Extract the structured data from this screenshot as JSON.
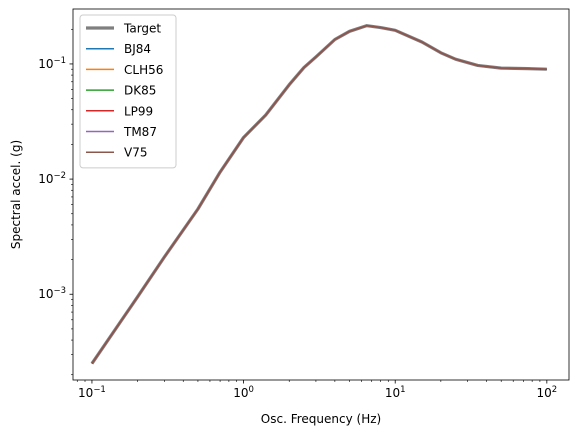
{
  "chart_data": {
    "type": "line",
    "title": "",
    "xlabel": "Osc. Frequency (Hz)",
    "ylabel": "Spectral accel. (g)",
    "xscale": "log",
    "yscale": "log",
    "xlim": [
      0.075,
      140
    ],
    "ylim": [
      0.00018,
      0.3
    ],
    "grid": false,
    "legend_position": "top-left",
    "x_ticks": [
      {
        "value": 0.1,
        "base": "10",
        "exp": "−1"
      },
      {
        "value": 1,
        "base": "10",
        "exp": "0"
      },
      {
        "value": 10,
        "base": "10",
        "exp": "1"
      },
      {
        "value": 100,
        "base": "10",
        "exp": "2"
      }
    ],
    "y_ticks": [
      {
        "value": 0.001,
        "base": "10",
        "exp": "−3"
      },
      {
        "value": 0.01,
        "base": "10",
        "exp": "−2"
      },
      {
        "value": 0.1,
        "base": "10",
        "exp": "−1"
      }
    ],
    "x": [
      0.1,
      0.2,
      0.3,
      0.5,
      0.7,
      1.0,
      1.4,
      2.0,
      2.5,
      3.0,
      4.0,
      5.0,
      6.5,
      8.0,
      10,
      15,
      20,
      25,
      35,
      50,
      75,
      100
    ],
    "series": [
      {
        "name": "Target",
        "color": "#7f7f7f",
        "width": 3.2,
        "values": [
          0.00025,
          0.00095,
          0.0021,
          0.0055,
          0.0115,
          0.023,
          0.036,
          0.066,
          0.093,
          0.115,
          0.163,
          0.192,
          0.215,
          0.207,
          0.196,
          0.155,
          0.125,
          0.11,
          0.097,
          0.092,
          0.091,
          0.09
        ]
      },
      {
        "name": "BJ84",
        "color": "#1f77b4",
        "width": 1.5,
        "values": [
          0.00025,
          0.00095,
          0.0021,
          0.0055,
          0.0115,
          0.023,
          0.036,
          0.066,
          0.093,
          0.115,
          0.163,
          0.192,
          0.215,
          0.207,
          0.196,
          0.155,
          0.125,
          0.11,
          0.097,
          0.092,
          0.091,
          0.09
        ]
      },
      {
        "name": "CLH56",
        "color": "#ff7f0e",
        "width": 1.5,
        "values": [
          0.00025,
          0.00095,
          0.0021,
          0.0055,
          0.0115,
          0.023,
          0.036,
          0.066,
          0.093,
          0.115,
          0.163,
          0.192,
          0.215,
          0.207,
          0.196,
          0.155,
          0.125,
          0.11,
          0.097,
          0.092,
          0.091,
          0.09
        ]
      },
      {
        "name": "DK85",
        "color": "#2ca02c",
        "width": 1.5,
        "values": [
          0.00025,
          0.00095,
          0.0021,
          0.0055,
          0.0115,
          0.023,
          0.036,
          0.066,
          0.093,
          0.115,
          0.163,
          0.192,
          0.215,
          0.207,
          0.196,
          0.155,
          0.125,
          0.11,
          0.097,
          0.092,
          0.091,
          0.09
        ]
      },
      {
        "name": "LP99",
        "color": "#d62728",
        "width": 1.5,
        "values": [
          0.00025,
          0.00095,
          0.0021,
          0.0055,
          0.0115,
          0.023,
          0.036,
          0.066,
          0.093,
          0.115,
          0.163,
          0.192,
          0.215,
          0.207,
          0.196,
          0.155,
          0.125,
          0.11,
          0.097,
          0.092,
          0.091,
          0.09
        ]
      },
      {
        "name": "TM87",
        "color": "#9467bd",
        "width": 1.5,
        "values": [
          0.00025,
          0.00095,
          0.0021,
          0.0055,
          0.0115,
          0.023,
          0.036,
          0.066,
          0.093,
          0.115,
          0.163,
          0.192,
          0.215,
          0.207,
          0.196,
          0.155,
          0.125,
          0.11,
          0.097,
          0.092,
          0.091,
          0.09
        ]
      },
      {
        "name": "V75",
        "color": "#8c564b",
        "width": 1.5,
        "values": [
          0.00025,
          0.00095,
          0.0021,
          0.0055,
          0.0115,
          0.023,
          0.036,
          0.066,
          0.093,
          0.115,
          0.163,
          0.192,
          0.215,
          0.207,
          0.196,
          0.155,
          0.125,
          0.11,
          0.097,
          0.092,
          0.091,
          0.09
        ]
      }
    ]
  }
}
